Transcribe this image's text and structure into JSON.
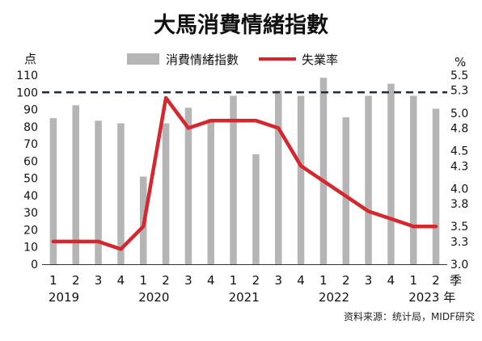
{
  "chart_data": {
    "type": "bar+line",
    "title": "大馬消費情緒指數",
    "left_axis": {
      "unit_label": "点",
      "ylim": [
        0,
        110
      ],
      "ticks": [
        "0",
        "10",
        "20",
        "30",
        "40",
        "50",
        "60",
        "70",
        "80",
        "90",
        "100",
        "110"
      ]
    },
    "right_axis": {
      "unit_label": "%",
      "ylim": [
        3.0,
        5.5
      ],
      "ticks": [
        "3.0",
        "3.3",
        "3.5",
        "3.8",
        "4.0",
        "4.3",
        "4.5",
        "4.8",
        "5.0",
        "5.3",
        "5.5"
      ]
    },
    "quarter_labels": [
      "1",
      "2",
      "3",
      "4",
      "1",
      "2",
      "3",
      "4",
      "1",
      "2",
      "3",
      "4",
      "1",
      "2",
      "3",
      "4",
      "1",
      "2"
    ],
    "x_suffix_label": "季",
    "year_labels": [
      {
        "label": "2019",
        "start_index": 0
      },
      {
        "label": "2020",
        "start_index": 4
      },
      {
        "label": "2021",
        "start_index": 8
      },
      {
        "label": "2022",
        "start_index": 12
      },
      {
        "label": "2023 年",
        "start_index": 16
      }
    ],
    "series": [
      {
        "name": "消費情緒指數",
        "type": "bar",
        "axis": "left",
        "color": "#b5b5b5",
        "values": [
          85,
          92.5,
          83.5,
          82,
          51,
          82,
          91,
          84.5,
          98,
          64,
          101,
          98,
          108.5,
          85.5,
          98,
          105,
          98,
          90.5
        ]
      },
      {
        "name": "失業率",
        "type": "line",
        "axis": "right",
        "color": "#d6262e",
        "values": [
          3.3,
          3.3,
          3.3,
          3.2,
          3.5,
          5.2,
          4.8,
          4.9,
          4.9,
          4.9,
          4.8,
          4.3,
          4.1,
          3.9,
          3.7,
          3.6,
          3.5,
          3.5
        ]
      }
    ],
    "reference_line": {
      "axis": "left",
      "value": 100,
      "style": "dashed",
      "color": "#1f2a4d"
    },
    "legend_position": "top",
    "grid": false,
    "source": "资料来源：统计局，MIDF研究"
  }
}
